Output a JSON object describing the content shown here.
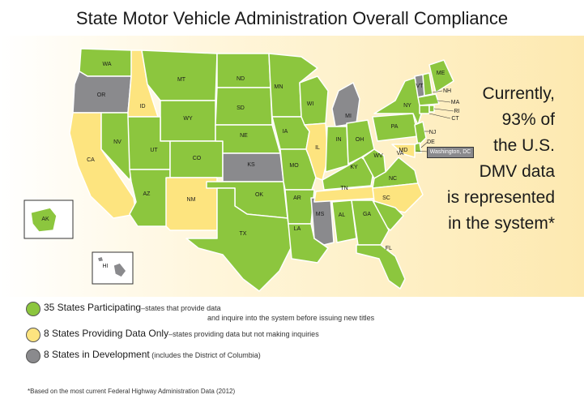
{
  "title": "State Motor Vehicle Administration Overall Compliance",
  "colors": {
    "participating": "#8cc63e",
    "data_only": "#fde47f",
    "development": "#8a8a8d"
  },
  "callout": {
    "line1": "Currently,",
    "line2": "93% of",
    "line3": "the U.S.",
    "line4": "DMV data",
    "line5": "is represented",
    "line6": "in the system*"
  },
  "dc_label": "Washington, DC",
  "states": {
    "WA": "WA",
    "OR": "OR",
    "CA": "CA",
    "NV": "NV",
    "ID": "ID",
    "MT": "MT",
    "WY": "WY",
    "UT": "UT",
    "AZ": "AZ",
    "CO": "CO",
    "NM": "NM",
    "ND": "ND",
    "SD": "SD",
    "NE": "NE",
    "KS": "KS",
    "OK": "OK",
    "TX": "TX",
    "MN": "MN",
    "IA": "IA",
    "MO": "MO",
    "AR": "AR",
    "LA": "LA",
    "WI": "WI",
    "IL": "IL",
    "MS": "MS",
    "MI": "MI",
    "IN": "IN",
    "KY": "KY",
    "TN": "TN",
    "AL": "AL",
    "OH": "OH",
    "WV": "WV",
    "VA": "VA",
    "NC": "NC",
    "SC": "SC",
    "GA": "GA",
    "FL": "FL",
    "PA": "PA",
    "NY": "NY",
    "NJ": "NJ",
    "DE": "DE",
    "MD": "MD",
    "VT": "VT",
    "NH": "NH",
    "ME": "ME",
    "MA": "MA",
    "RI": "RI",
    "CT": "CT",
    "AK": "AK",
    "HI": "HI"
  },
  "legend": [
    {
      "label": "35 States Participating",
      "desc": "–states that provide data",
      "desc2": "and inquire into the system before issuing new titles"
    },
    {
      "label": "8 States Providing Data Only",
      "desc": "–states providing data but not making inquiries"
    },
    {
      "label": "8 States in Development",
      "desc": " (includes the District of Columbia)"
    }
  ],
  "footnote": "*Based on the most current Federal Highway Administration Data (2012)"
}
